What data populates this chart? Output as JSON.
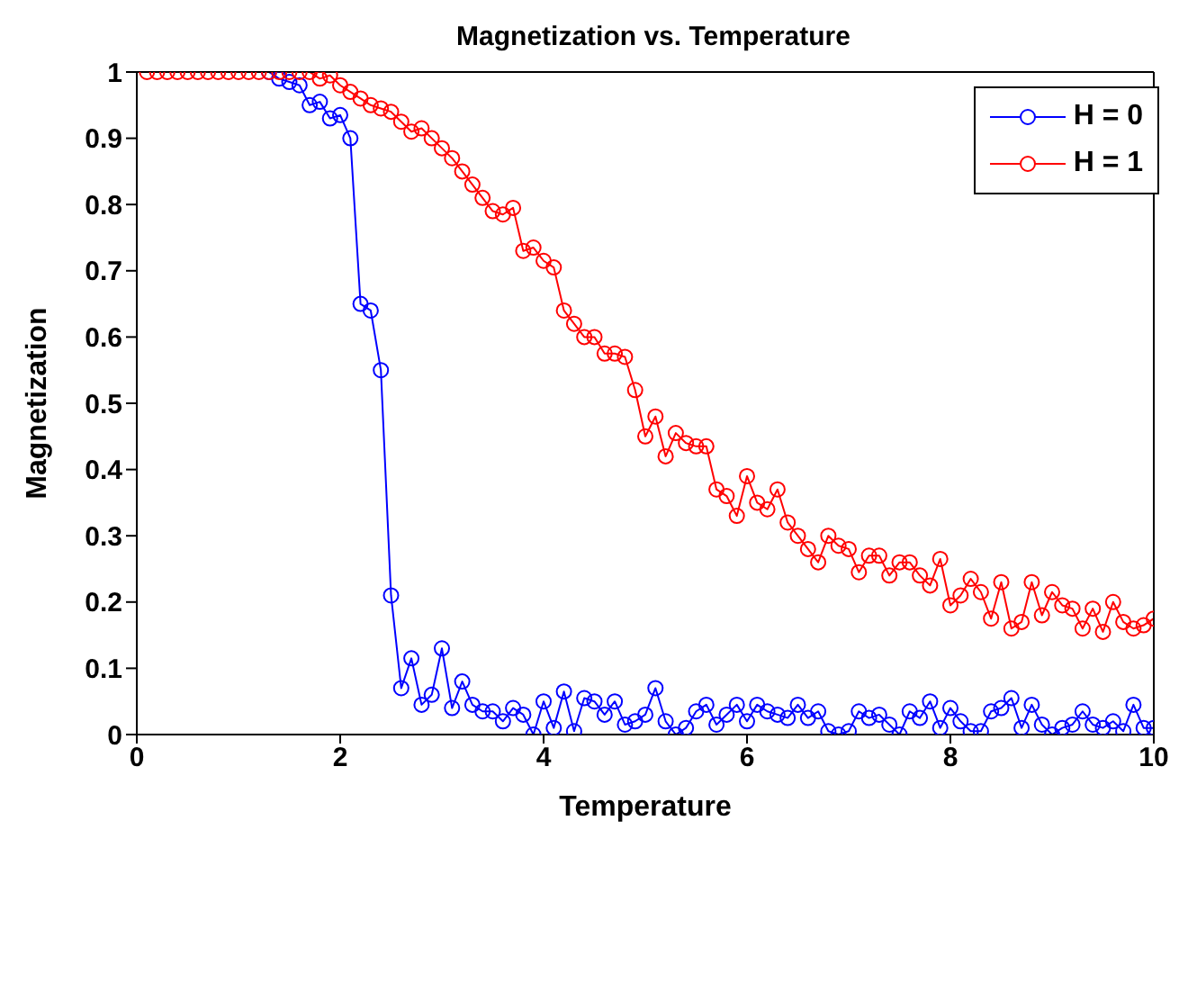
{
  "chart_data": {
    "type": "line",
    "title": "Magnetization vs. Temperature",
    "xlabel": "Temperature",
    "ylabel": "Magnetization",
    "x": [
      0.1,
      0.2,
      0.3,
      0.4,
      0.5,
      0.6,
      0.7,
      0.8,
      0.9,
      1.0,
      1.1,
      1.2,
      1.3,
      1.4,
      1.5,
      1.6,
      1.7,
      1.8,
      1.9,
      2.0,
      2.1,
      2.2,
      2.3,
      2.4,
      2.5,
      2.6,
      2.7,
      2.8,
      2.9,
      3.0,
      3.1,
      3.2,
      3.3,
      3.4,
      3.5,
      3.6,
      3.7,
      3.8,
      3.9,
      4.0,
      4.1,
      4.2,
      4.3,
      4.4,
      4.5,
      4.6,
      4.7,
      4.8,
      4.9,
      5.0,
      5.1,
      5.2,
      5.3,
      5.4,
      5.5,
      5.6,
      5.7,
      5.8,
      5.9,
      6.0,
      6.1,
      6.2,
      6.3,
      6.4,
      6.5,
      6.6,
      6.7,
      6.8,
      6.9,
      7.0,
      7.1,
      7.2,
      7.3,
      7.4,
      7.5,
      7.6,
      7.7,
      7.8,
      7.9,
      8.0,
      8.1,
      8.2,
      8.3,
      8.4,
      8.5,
      8.6,
      8.7,
      8.8,
      8.9,
      9.0,
      9.1,
      9.2,
      9.3,
      9.4,
      9.5,
      9.6,
      9.7,
      9.8,
      9.9,
      10.0
    ],
    "series": [
      {
        "name": "H = 0",
        "color": "#0000ff",
        "values": [
          null,
          null,
          null,
          null,
          null,
          null,
          null,
          null,
          null,
          null,
          null,
          null,
          1,
          0.99,
          0.985,
          0.98,
          0.95,
          0.955,
          0.93,
          0.935,
          0.9,
          0.65,
          0.64,
          0.55,
          0.21,
          0.07,
          0.115,
          0.045,
          0.06,
          0.13,
          0.04,
          0.08,
          0.045,
          0.035,
          0.035,
          0.02,
          0.04,
          0.03,
          0.0,
          0.05,
          0.01,
          0.065,
          0.005,
          0.055,
          0.05,
          0.03,
          0.05,
          0.015,
          0.02,
          0.03,
          0.07,
          0.02,
          0.0,
          0.01,
          0.035,
          0.045,
          0.015,
          0.03,
          0.045,
          0.02,
          0.045,
          0.035,
          0.03,
          0.025,
          0.045,
          0.025,
          0.035,
          0.005,
          0.0,
          0.005,
          0.035,
          0.025,
          0.03,
          0.015,
          0.0,
          0.035,
          0.025,
          0.05,
          0.01,
          0.04,
          0.02,
          0.005,
          0.005,
          0.035,
          0.04,
          0.055,
          0.01,
          0.045,
          0.015,
          0.0,
          0.01,
          0.015,
          0.035,
          0.015,
          0.01,
          0.02,
          0.005,
          0.045,
          0.01,
          0.01
        ]
      },
      {
        "name": "H = 1",
        "color": "#ff0000",
        "values": [
          1,
          1,
          1,
          1,
          1,
          1,
          1,
          1,
          1,
          1,
          1,
          1,
          1,
          1,
          1,
          1,
          1,
          0.99,
          0.995,
          0.98,
          0.97,
          0.96,
          0.95,
          0.945,
          0.94,
          0.925,
          0.91,
          0.915,
          0.9,
          0.885,
          0.87,
          0.85,
          0.83,
          0.81,
          0.79,
          0.785,
          0.795,
          0.73,
          0.735,
          0.715,
          0.705,
          0.64,
          0.62,
          0.6,
          0.6,
          0.575,
          0.575,
          0.57,
          0.52,
          0.45,
          0.48,
          0.42,
          0.455,
          0.44,
          0.435,
          0.435,
          0.37,
          0.36,
          0.33,
          0.39,
          0.35,
          0.34,
          0.37,
          0.32,
          0.3,
          0.28,
          0.26,
          0.3,
          0.285,
          0.28,
          0.245,
          0.27,
          0.27,
          0.24,
          0.26,
          0.26,
          0.24,
          0.225,
          0.265,
          0.195,
          0.21,
          0.235,
          0.215,
          0.175,
          0.23,
          0.16,
          0.17,
          0.23,
          0.18,
          0.215,
          0.195,
          0.19,
          0.16,
          0.19,
          0.155,
          0.2,
          0.17,
          0.16,
          0.165,
          0.175
        ]
      }
    ],
    "xlim": [
      0,
      10
    ],
    "xticks": [
      0,
      2,
      4,
      6,
      8,
      10
    ],
    "ylim": [
      0,
      1
    ],
    "yticks": [
      0,
      0.1,
      0.2,
      0.3,
      0.4,
      0.5,
      0.6,
      0.7,
      0.8,
      0.9,
      1
    ],
    "grid": false,
    "legend": "top right",
    "marker": "circle",
    "line_style": "solid"
  }
}
